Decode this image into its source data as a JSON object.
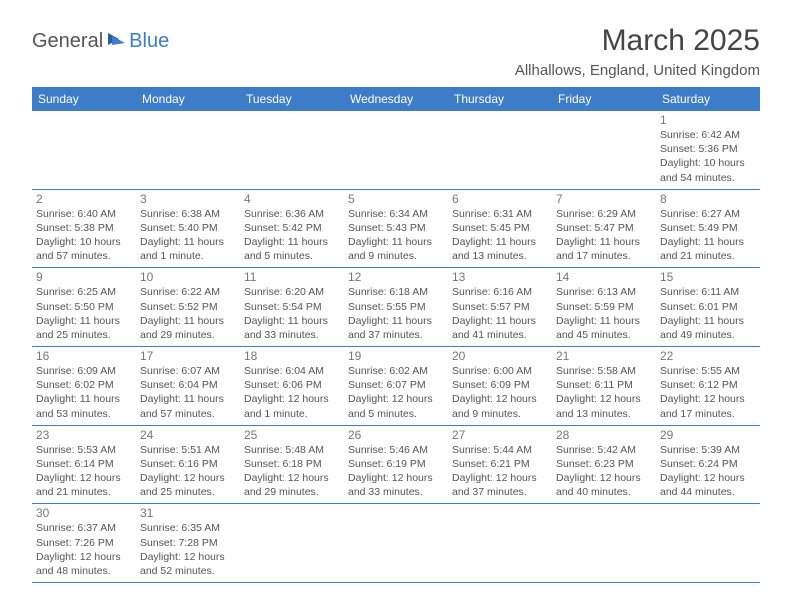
{
  "logo": {
    "text1": "General",
    "text2": "Blue"
  },
  "title": "March 2025",
  "location": "Allhallows, England, United Kingdom",
  "colors": {
    "header_bg": "#3d7cc9",
    "header_fg": "#ffffff",
    "border": "#3d7cc9",
    "text": "#555555",
    "daynum": "#777777"
  },
  "weekdays": [
    "Sunday",
    "Monday",
    "Tuesday",
    "Wednesday",
    "Thursday",
    "Friday",
    "Saturday"
  ],
  "weeks": [
    [
      null,
      null,
      null,
      null,
      null,
      null,
      {
        "n": "1",
        "sr": "Sunrise: 6:42 AM",
        "ss": "Sunset: 5:36 PM",
        "d1": "Daylight: 10 hours",
        "d2": "and 54 minutes."
      }
    ],
    [
      {
        "n": "2",
        "sr": "Sunrise: 6:40 AM",
        "ss": "Sunset: 5:38 PM",
        "d1": "Daylight: 10 hours",
        "d2": "and 57 minutes."
      },
      {
        "n": "3",
        "sr": "Sunrise: 6:38 AM",
        "ss": "Sunset: 5:40 PM",
        "d1": "Daylight: 11 hours",
        "d2": "and 1 minute."
      },
      {
        "n": "4",
        "sr": "Sunrise: 6:36 AM",
        "ss": "Sunset: 5:42 PM",
        "d1": "Daylight: 11 hours",
        "d2": "and 5 minutes."
      },
      {
        "n": "5",
        "sr": "Sunrise: 6:34 AM",
        "ss": "Sunset: 5:43 PM",
        "d1": "Daylight: 11 hours",
        "d2": "and 9 minutes."
      },
      {
        "n": "6",
        "sr": "Sunrise: 6:31 AM",
        "ss": "Sunset: 5:45 PM",
        "d1": "Daylight: 11 hours",
        "d2": "and 13 minutes."
      },
      {
        "n": "7",
        "sr": "Sunrise: 6:29 AM",
        "ss": "Sunset: 5:47 PM",
        "d1": "Daylight: 11 hours",
        "d2": "and 17 minutes."
      },
      {
        "n": "8",
        "sr": "Sunrise: 6:27 AM",
        "ss": "Sunset: 5:49 PM",
        "d1": "Daylight: 11 hours",
        "d2": "and 21 minutes."
      }
    ],
    [
      {
        "n": "9",
        "sr": "Sunrise: 6:25 AM",
        "ss": "Sunset: 5:50 PM",
        "d1": "Daylight: 11 hours",
        "d2": "and 25 minutes."
      },
      {
        "n": "10",
        "sr": "Sunrise: 6:22 AM",
        "ss": "Sunset: 5:52 PM",
        "d1": "Daylight: 11 hours",
        "d2": "and 29 minutes."
      },
      {
        "n": "11",
        "sr": "Sunrise: 6:20 AM",
        "ss": "Sunset: 5:54 PM",
        "d1": "Daylight: 11 hours",
        "d2": "and 33 minutes."
      },
      {
        "n": "12",
        "sr": "Sunrise: 6:18 AM",
        "ss": "Sunset: 5:55 PM",
        "d1": "Daylight: 11 hours",
        "d2": "and 37 minutes."
      },
      {
        "n": "13",
        "sr": "Sunrise: 6:16 AM",
        "ss": "Sunset: 5:57 PM",
        "d1": "Daylight: 11 hours",
        "d2": "and 41 minutes."
      },
      {
        "n": "14",
        "sr": "Sunrise: 6:13 AM",
        "ss": "Sunset: 5:59 PM",
        "d1": "Daylight: 11 hours",
        "d2": "and 45 minutes."
      },
      {
        "n": "15",
        "sr": "Sunrise: 6:11 AM",
        "ss": "Sunset: 6:01 PM",
        "d1": "Daylight: 11 hours",
        "d2": "and 49 minutes."
      }
    ],
    [
      {
        "n": "16",
        "sr": "Sunrise: 6:09 AM",
        "ss": "Sunset: 6:02 PM",
        "d1": "Daylight: 11 hours",
        "d2": "and 53 minutes."
      },
      {
        "n": "17",
        "sr": "Sunrise: 6:07 AM",
        "ss": "Sunset: 6:04 PM",
        "d1": "Daylight: 11 hours",
        "d2": "and 57 minutes."
      },
      {
        "n": "18",
        "sr": "Sunrise: 6:04 AM",
        "ss": "Sunset: 6:06 PM",
        "d1": "Daylight: 12 hours",
        "d2": "and 1 minute."
      },
      {
        "n": "19",
        "sr": "Sunrise: 6:02 AM",
        "ss": "Sunset: 6:07 PM",
        "d1": "Daylight: 12 hours",
        "d2": "and 5 minutes."
      },
      {
        "n": "20",
        "sr": "Sunrise: 6:00 AM",
        "ss": "Sunset: 6:09 PM",
        "d1": "Daylight: 12 hours",
        "d2": "and 9 minutes."
      },
      {
        "n": "21",
        "sr": "Sunrise: 5:58 AM",
        "ss": "Sunset: 6:11 PM",
        "d1": "Daylight: 12 hours",
        "d2": "and 13 minutes."
      },
      {
        "n": "22",
        "sr": "Sunrise: 5:55 AM",
        "ss": "Sunset: 6:12 PM",
        "d1": "Daylight: 12 hours",
        "d2": "and 17 minutes."
      }
    ],
    [
      {
        "n": "23",
        "sr": "Sunrise: 5:53 AM",
        "ss": "Sunset: 6:14 PM",
        "d1": "Daylight: 12 hours",
        "d2": "and 21 minutes."
      },
      {
        "n": "24",
        "sr": "Sunrise: 5:51 AM",
        "ss": "Sunset: 6:16 PM",
        "d1": "Daylight: 12 hours",
        "d2": "and 25 minutes."
      },
      {
        "n": "25",
        "sr": "Sunrise: 5:48 AM",
        "ss": "Sunset: 6:18 PM",
        "d1": "Daylight: 12 hours",
        "d2": "and 29 minutes."
      },
      {
        "n": "26",
        "sr": "Sunrise: 5:46 AM",
        "ss": "Sunset: 6:19 PM",
        "d1": "Daylight: 12 hours",
        "d2": "and 33 minutes."
      },
      {
        "n": "27",
        "sr": "Sunrise: 5:44 AM",
        "ss": "Sunset: 6:21 PM",
        "d1": "Daylight: 12 hours",
        "d2": "and 37 minutes."
      },
      {
        "n": "28",
        "sr": "Sunrise: 5:42 AM",
        "ss": "Sunset: 6:23 PM",
        "d1": "Daylight: 12 hours",
        "d2": "and 40 minutes."
      },
      {
        "n": "29",
        "sr": "Sunrise: 5:39 AM",
        "ss": "Sunset: 6:24 PM",
        "d1": "Daylight: 12 hours",
        "d2": "and 44 minutes."
      }
    ],
    [
      {
        "n": "30",
        "sr": "Sunrise: 6:37 AM",
        "ss": "Sunset: 7:26 PM",
        "d1": "Daylight: 12 hours",
        "d2": "and 48 minutes."
      },
      {
        "n": "31",
        "sr": "Sunrise: 6:35 AM",
        "ss": "Sunset: 7:28 PM",
        "d1": "Daylight: 12 hours",
        "d2": "and 52 minutes."
      },
      null,
      null,
      null,
      null,
      null
    ]
  ]
}
